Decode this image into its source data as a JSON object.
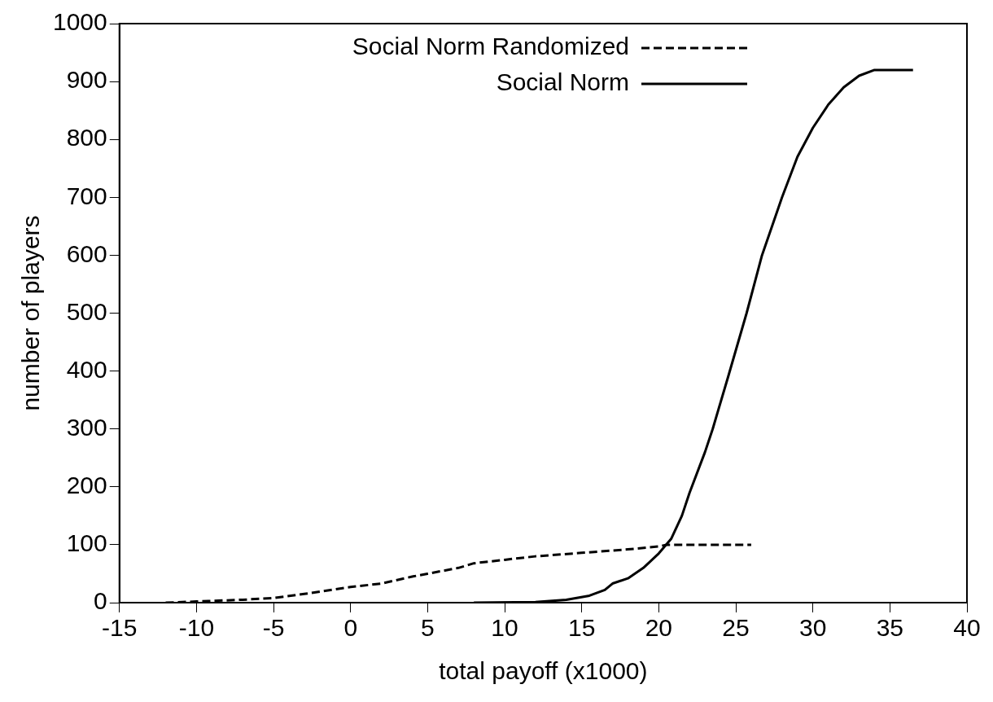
{
  "chart_data": {
    "type": "line",
    "xlabel": "total payoff (x1000)",
    "ylabel": "number of players",
    "xlim": [
      -15,
      40
    ],
    "xticks": [
      -15,
      -10,
      -5,
      0,
      5,
      10,
      15,
      20,
      25,
      30,
      35,
      40
    ],
    "ylim": [
      0,
      1000
    ],
    "yticks": [
      0,
      100,
      200,
      300,
      400,
      500,
      600,
      700,
      800,
      900,
      1000
    ],
    "legend": "top right",
    "grid": false,
    "marker": "none",
    "series": [
      {
        "name": "Social Norm Randomized",
        "color": "#000000",
        "line_style": "dashed",
        "x": [
          -12,
          -10,
          -7,
          -5,
          -3,
          -1,
          0,
          2,
          4,
          5,
          7,
          8,
          10,
          12,
          15,
          18,
          20,
          20.5,
          26
        ],
        "values": [
          0,
          2,
          5,
          8,
          15,
          23,
          27,
          33,
          45,
          50,
          60,
          68,
          74,
          80,
          86,
          92,
          97,
          100,
          100
        ]
      },
      {
        "name": "Social Norm",
        "color": "#000000",
        "line_style": "solid",
        "x": [
          8,
          12,
          14,
          15.5,
          16.5,
          17,
          18,
          19,
          20,
          20.8,
          21.5,
          22,
          23,
          23.5,
          24.5,
          25.7,
          26.7,
          28,
          29,
          30,
          31,
          32,
          33,
          34,
          36.5
        ],
        "values": [
          0,
          1,
          5,
          12,
          22,
          33,
          42,
          60,
          85,
          110,
          150,
          190,
          260,
          300,
          390,
          500,
          600,
          700,
          770,
          820,
          860,
          890,
          910,
          920,
          920
        ]
      }
    ]
  }
}
